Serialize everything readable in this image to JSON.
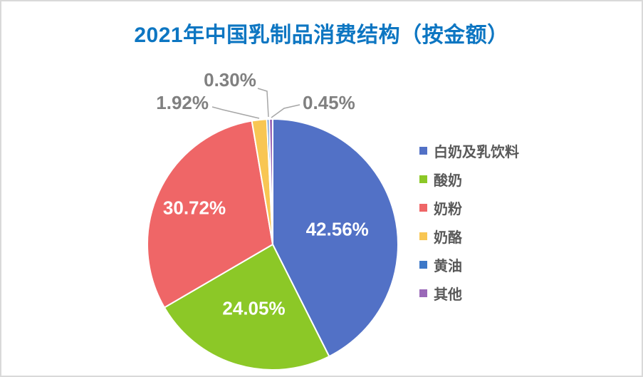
{
  "chart_data": {
    "type": "pie",
    "title": "2021年中国乳制品消费结构（按金额）",
    "title_color": "#0D76C2",
    "categories": [
      "白奶及乳饮料",
      "酸奶",
      "奶粉",
      "奶酪",
      "黄油",
      "其他"
    ],
    "values": [
      42.56,
      24.05,
      30.72,
      1.92,
      0.3,
      0.45
    ],
    "labels": [
      "42.56%",
      "24.05%",
      "30.72%",
      "1.92%",
      "0.30%",
      "0.45%"
    ],
    "colors": [
      "#5271C6",
      "#8CC827",
      "#EF6667",
      "#F8C653",
      "#3D78C8",
      "#9A68B8"
    ],
    "start_angle_deg": 0,
    "direction": "clockwise",
    "legend_position": "right",
    "slice_border_color": "#FFFFFF",
    "label_style": {
      "inside_label_color": "#FFFFFF",
      "outside_label_color": "#808080",
      "leader_line_color": "#A6A6A6"
    },
    "background_color": "#FFFFFF",
    "frame_border_color": "#D9D9D9"
  }
}
